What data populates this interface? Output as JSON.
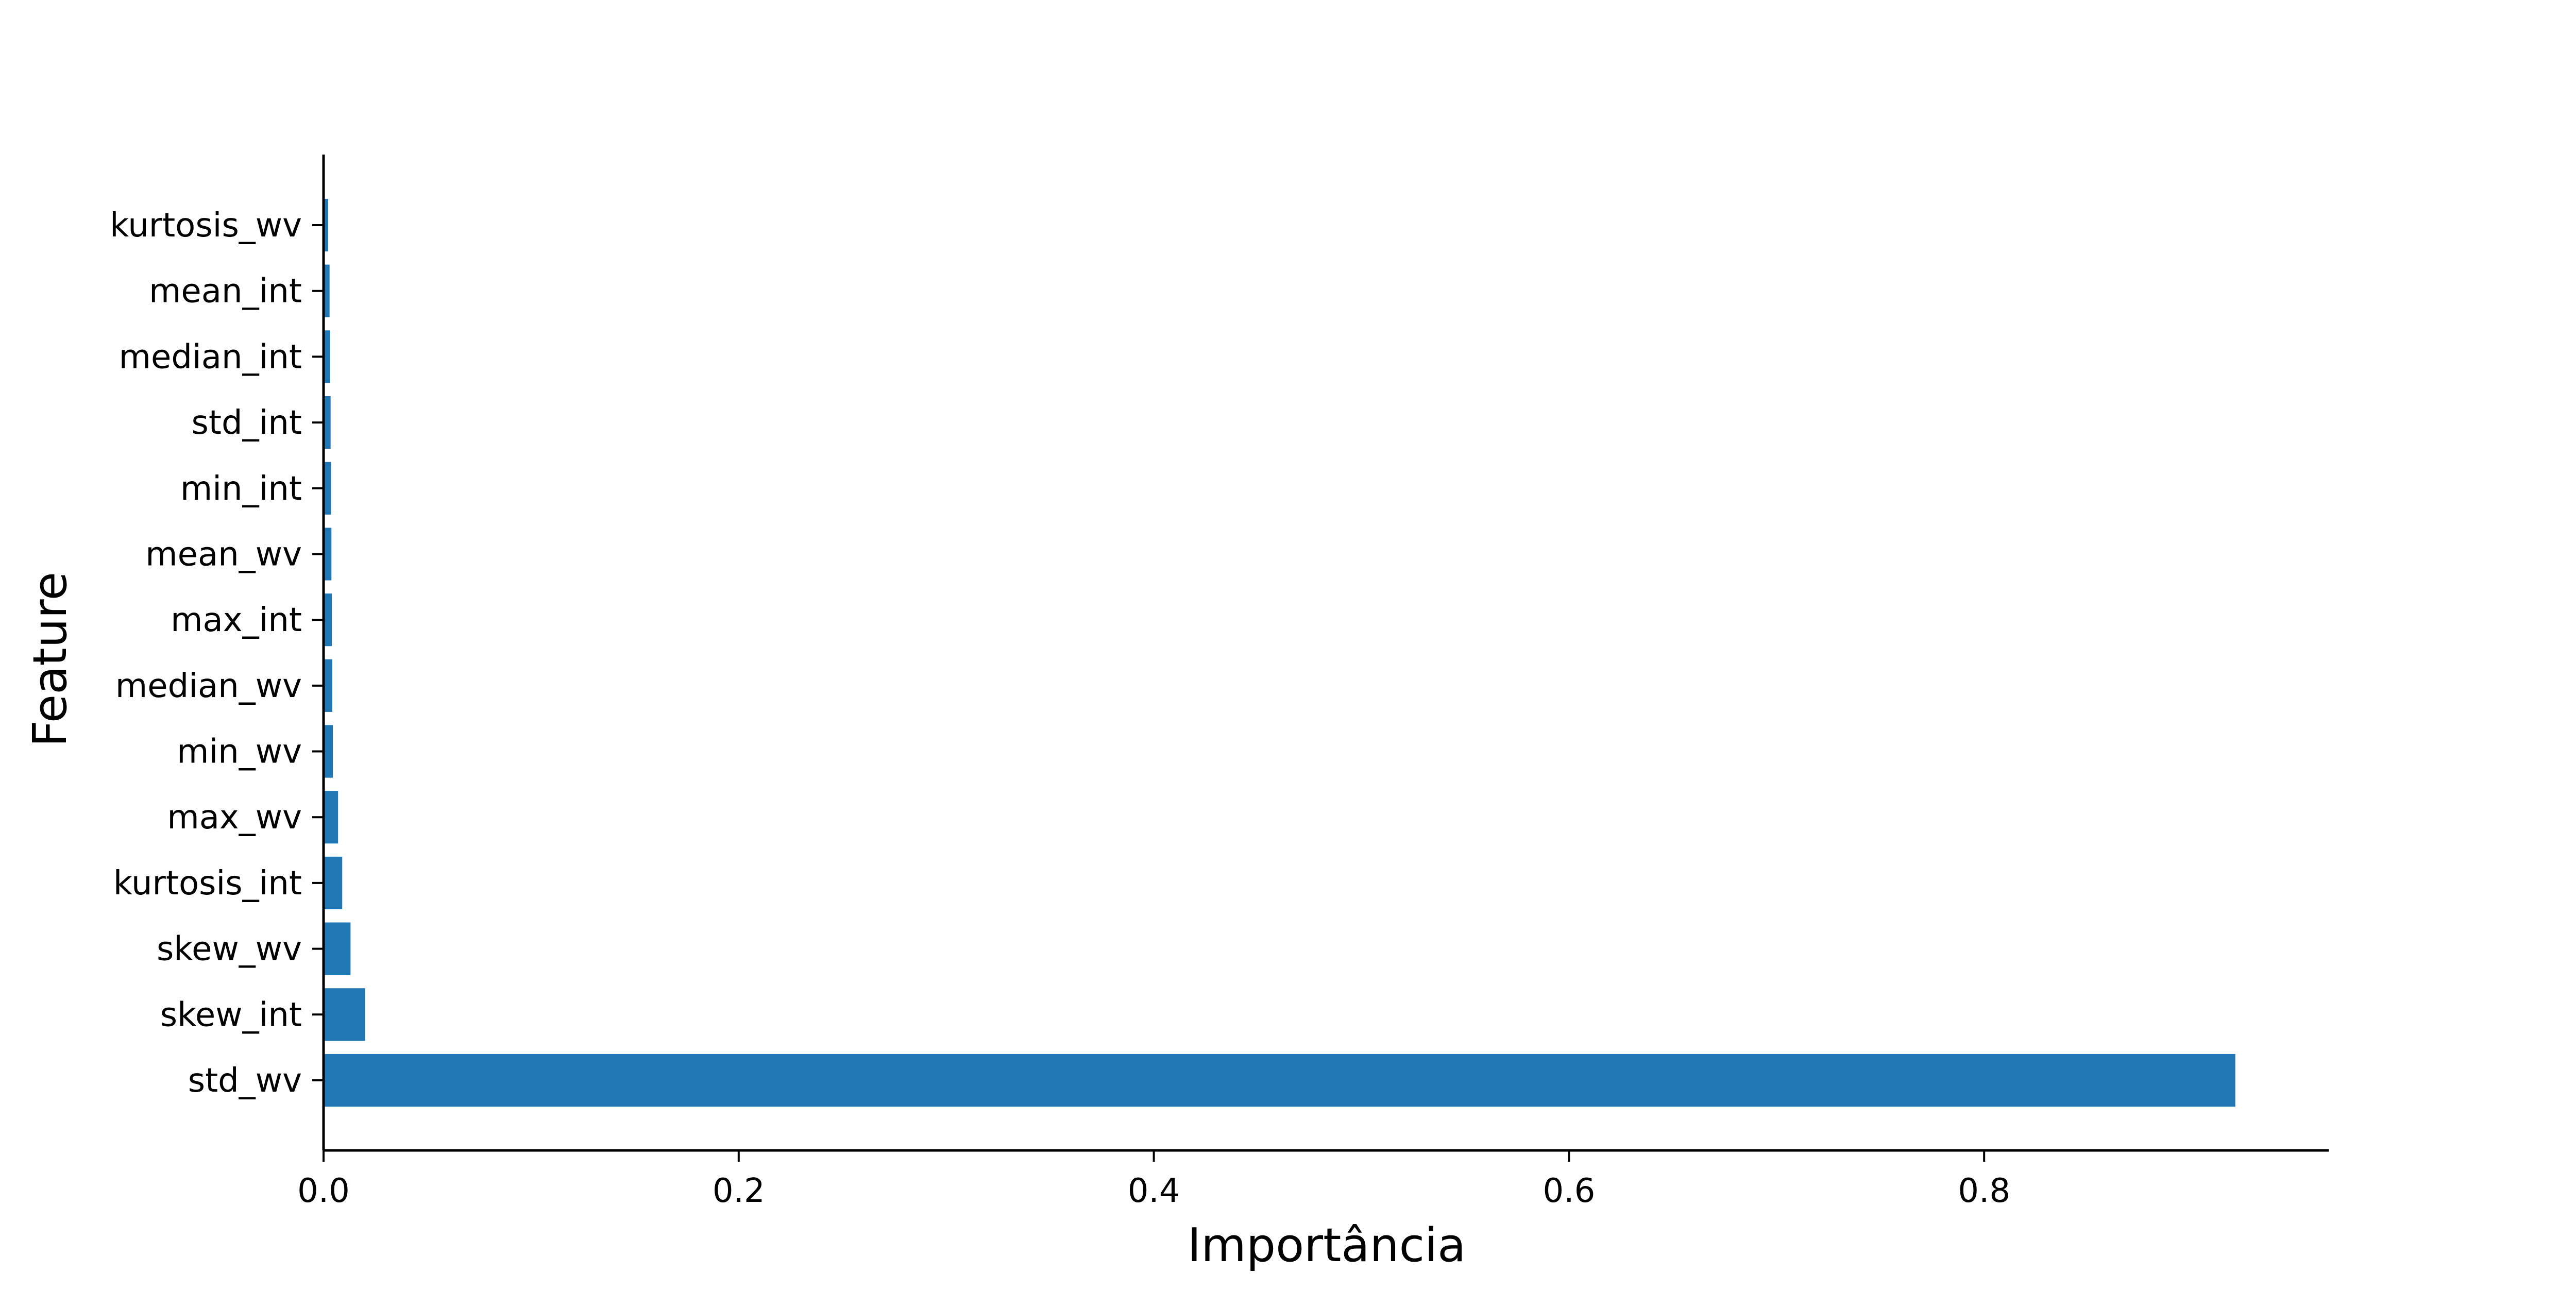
{
  "chart_data": {
    "type": "bar",
    "orientation": "horizontal",
    "xlabel": "Importância",
    "ylabel": "Feature",
    "xlim": [
      0,
      0.966
    ],
    "xticks": [
      0.0,
      0.2,
      0.4,
      0.6,
      0.8
    ],
    "xtick_labels": [
      "0.0",
      "0.2",
      "0.4",
      "0.6",
      "0.8"
    ],
    "grid": false,
    "bar_color": "#2077b4",
    "categories": [
      "std_wv",
      "skew_int",
      "skew_wv",
      "kurtosis_int",
      "max_wv",
      "min_wv",
      "median_wv",
      "max_int",
      "mean_wv",
      "min_int",
      "std_int",
      "median_int",
      "mean_int",
      "kurtosis_wv"
    ],
    "values": [
      0.921,
      0.02,
      0.013,
      0.009,
      0.007,
      0.0045,
      0.0042,
      0.004,
      0.0038,
      0.0036,
      0.0034,
      0.0032,
      0.0029,
      0.0022
    ]
  }
}
